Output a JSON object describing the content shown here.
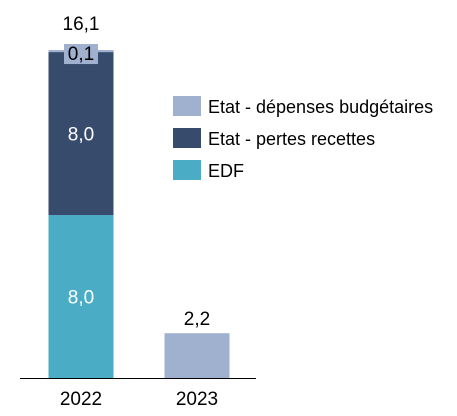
{
  "chart_data": {
    "type": "bar",
    "stacked": true,
    "categories": [
      "2022",
      "2023"
    ],
    "series": [
      {
        "name": "EDF",
        "values": [
          8.0,
          0
        ],
        "color": "#4bacc6",
        "labels": [
          "8,0",
          ""
        ]
      },
      {
        "name": "Etat - pertes recettes",
        "values": [
          8.0,
          0
        ],
        "color": "#374b6d",
        "labels": [
          "8,0",
          ""
        ]
      },
      {
        "name": "Etat - dépenses budgétaires",
        "values": [
          0.1,
          2.2
        ],
        "color": "#a0b0cf",
        "labels": [
          "0,1",
          ""
        ]
      }
    ],
    "totals": [
      "16,1",
      "2,2"
    ],
    "legend_order": [
      "Etat - dépenses budgétaires",
      "Etat - pertes recettes",
      "EDF"
    ],
    "legend_position": "right",
    "ylim": [
      0,
      16.2
    ],
    "grid": false
  }
}
